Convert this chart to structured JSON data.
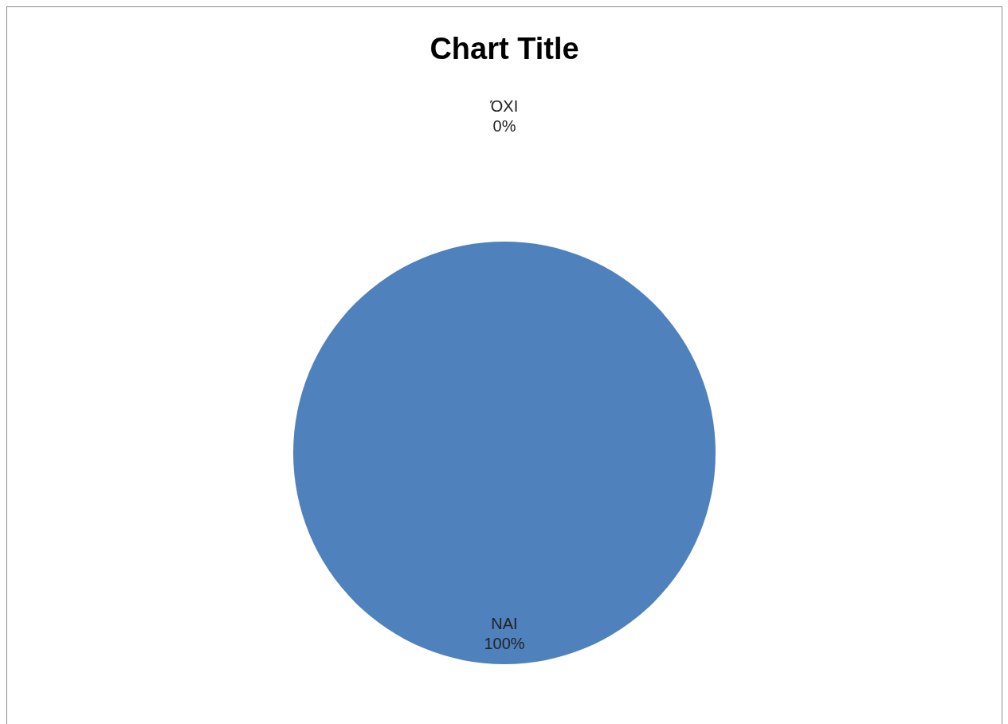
{
  "chart_data": {
    "type": "pie",
    "title": "Chart Title",
    "categories": [
      "ΌΧΙ",
      "ΝΑΙ"
    ],
    "values": [
      0,
      100
    ],
    "colors": [
      "#c0504d",
      "#4f81bd"
    ],
    "value_labels": [
      "0%",
      "100%"
    ]
  }
}
